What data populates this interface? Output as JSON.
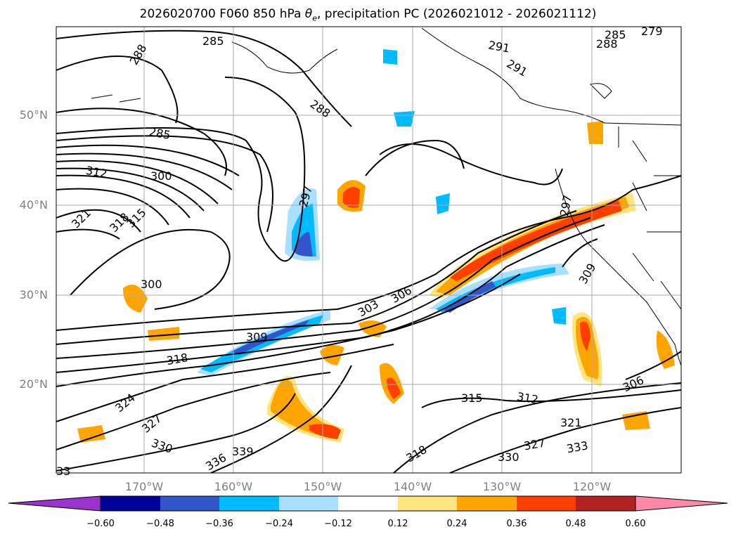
{
  "title_main": "2026020700 F060 850 hPa ",
  "title_theta": "θ",
  "title_sub": "e",
  "title_rest": ", precipitation PC (2026021012 - 2026021112)",
  "lat_labels": [
    "50°N",
    "40°N",
    "30°N",
    "20°N"
  ],
  "lon_labels": [
    "170°W",
    "160°W",
    "150°W",
    "140°W",
    "130°W",
    "120°W"
  ],
  "contour_labels": [
    "285",
    "288",
    "291",
    "288",
    "288",
    "285",
    "279",
    "291",
    "285",
    "300",
    "312",
    "321",
    "318",
    "315",
    "297",
    "300",
    "306",
    "303",
    "309",
    "318",
    "324",
    "327",
    "330",
    "336",
    "339",
    "315",
    "312",
    "321",
    "327",
    "330",
    "333",
    "318",
    "306",
    "309",
    "297",
    "33"
  ],
  "colorbar": {
    "ticks": [
      "−0.60",
      "−0.48",
      "−0.36",
      "−0.24",
      "−0.12",
      "0.12",
      "0.24",
      "0.36",
      "0.48",
      "0.60"
    ],
    "colors": [
      "#9933cc",
      "#000099",
      "#3355cc",
      "#00bbff",
      "#aadfff",
      "#ffffff",
      "#ffe580",
      "#ffa500",
      "#ff3f00",
      "#b22222",
      "#ff88aa"
    ]
  }
}
